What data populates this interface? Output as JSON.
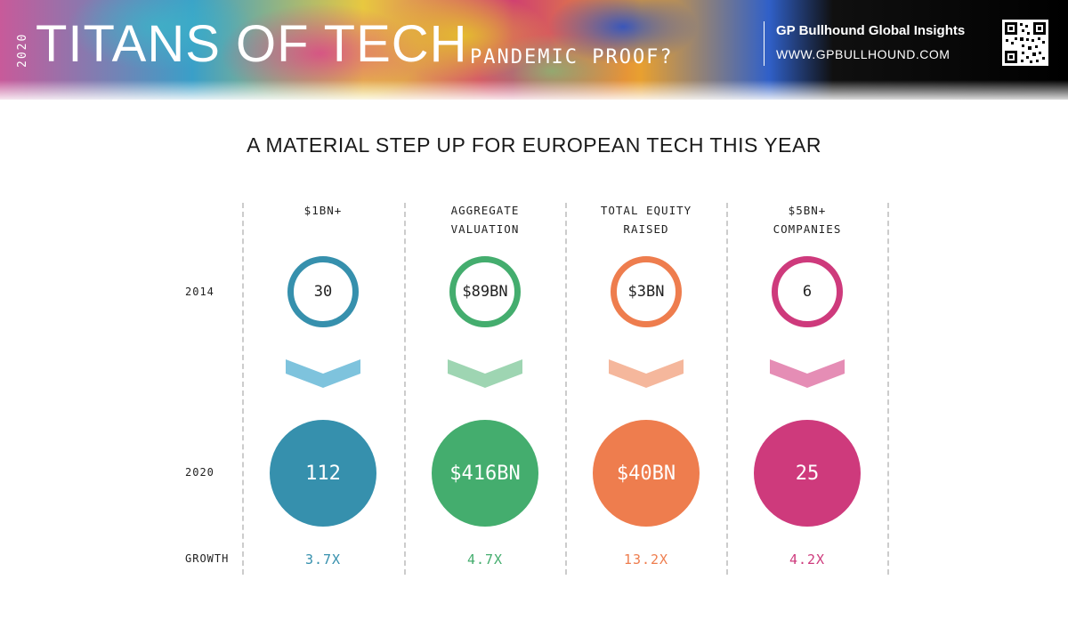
{
  "header": {
    "year": "2020",
    "title": "TITANS OF TECH",
    "subtitle": "PANDEMIC PROOF?",
    "brand_name": "GP Bullhound Global Insights",
    "brand_url": "WWW.GPBULLHOUND.COM"
  },
  "section_title": "A MATERIAL STEP UP FOR EUROPEAN TECH THIS YEAR",
  "row_labels": {
    "y2014": "2014",
    "y2020": "2020",
    "growth": "GROWTH"
  },
  "columns": [
    {
      "header_line1": "$1BN+",
      "header_line2": "",
      "value_2014": "30",
      "value_2020": "112",
      "growth": "3.7X",
      "color": "#3690ad",
      "chevron_color": "#7ec3dd"
    },
    {
      "header_line1": "AGGREGATE",
      "header_line2": "VALUATION",
      "value_2014": "$89BN",
      "value_2020": "$416BN",
      "growth": "4.7X",
      "color": "#44ad6e",
      "chevron_color": "#9ed5b2"
    },
    {
      "header_line1": "TOTAL EQUITY",
      "header_line2": "RAISED",
      "value_2014": "$3BN",
      "value_2020": "$40BN",
      "growth": "13.2X",
      "color": "#ee7d4e",
      "chevron_color": "#f5b79c"
    },
    {
      "header_line1": "$5BN+",
      "header_line2": "COMPANIES",
      "value_2014": "6",
      "value_2020": "25",
      "growth": "4.2X",
      "color": "#ce3a7c",
      "chevron_color": "#e58db5"
    }
  ]
}
